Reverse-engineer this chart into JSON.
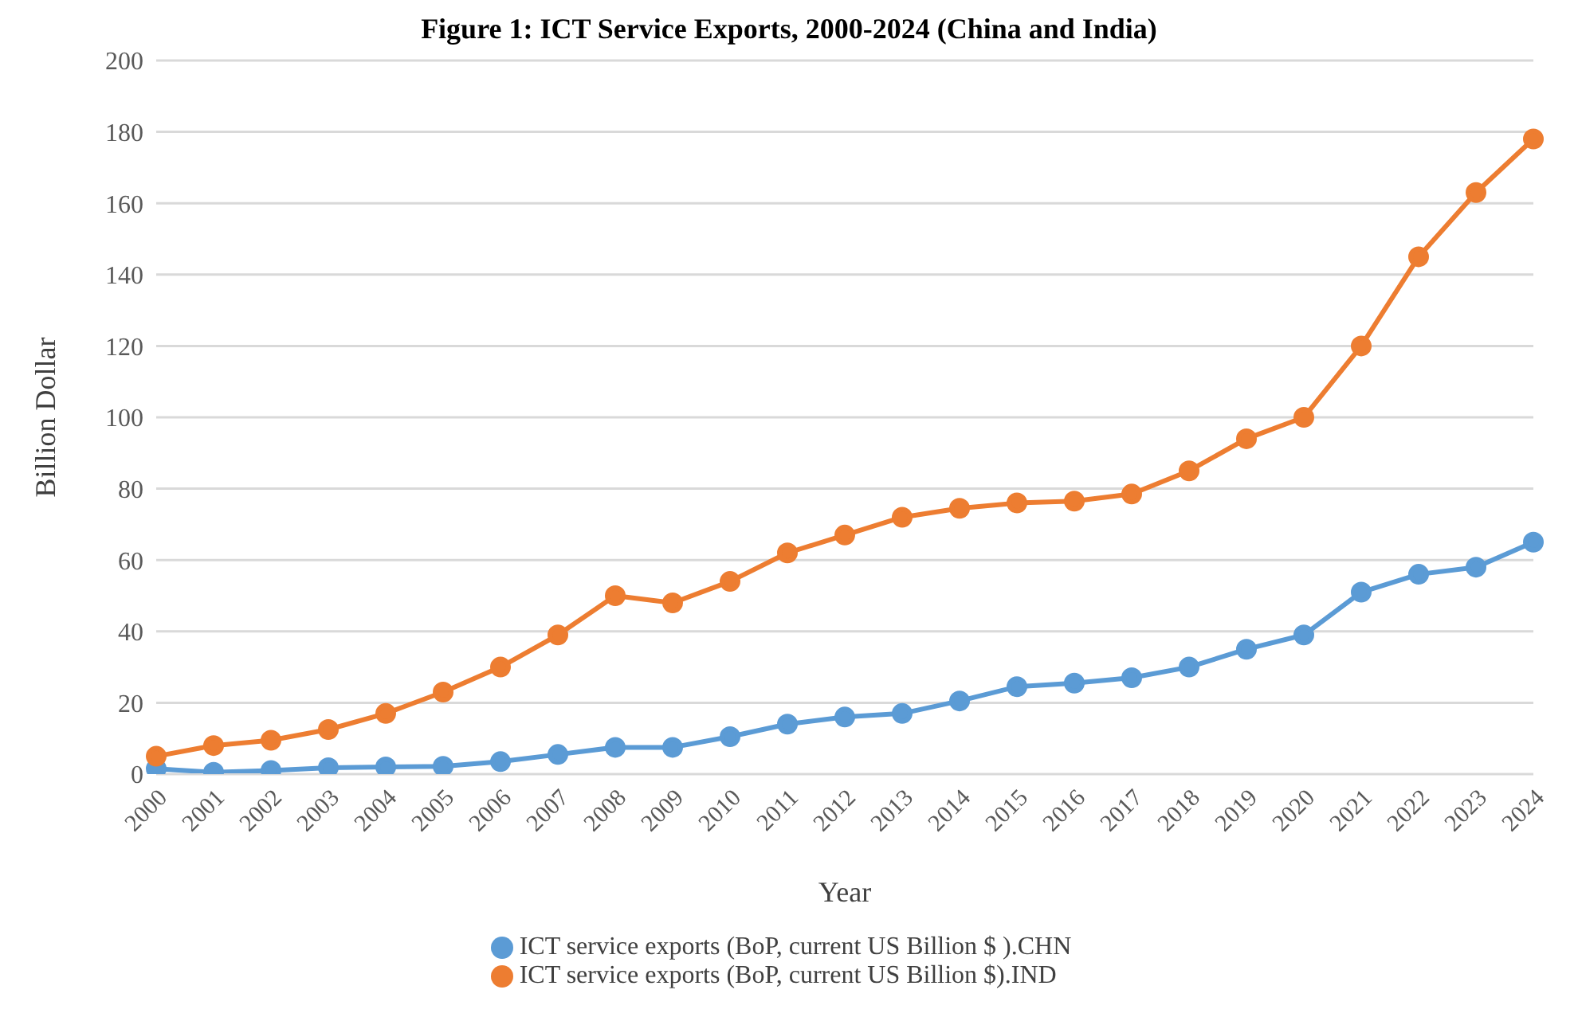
{
  "chart_data": {
    "type": "line",
    "title": "Figure 1: ICT Service Exports, 2000-2024 (China and India)",
    "xlabel": "Year",
    "ylabel": "Billion Dollar",
    "categories": [
      "2000",
      "2001",
      "2002",
      "2003",
      "2004",
      "2005",
      "2006",
      "2007",
      "2008",
      "2009",
      "2010",
      "2011",
      "2012",
      "2013",
      "2014",
      "2015",
      "2016",
      "2017",
      "2018",
      "2019",
      "2020",
      "2021",
      "2022",
      "2023",
      "2024"
    ],
    "series": [
      {
        "name": "ICT service exports (BoP, current US Billion $ ).CHN",
        "color": "#5b9bd5",
        "values": [
          1.5,
          0.5,
          1,
          1.8,
          2,
          2.2,
          3.5,
          5.5,
          7.5,
          7.5,
          10.5,
          14,
          16,
          17,
          20.5,
          24.5,
          25.5,
          27,
          30,
          35,
          39,
          51,
          56,
          58,
          65
        ]
      },
      {
        "name": "ICT service exports (BoP, current US Billion $).IND",
        "color": "#ed7d31",
        "values": [
          5,
          8,
          9.5,
          12.5,
          17,
          23,
          30,
          39,
          50,
          48,
          54,
          62,
          67,
          72,
          74.5,
          76,
          76.5,
          78.5,
          85,
          94,
          100,
          120,
          145,
          163,
          178
        ]
      }
    ],
    "ylim": [
      0,
      200
    ],
    "yticks": [
      0,
      20,
      40,
      60,
      80,
      100,
      120,
      140,
      160,
      180,
      200
    ],
    "grid": "y",
    "legend": "bottom",
    "marker": "circle",
    "line_style": "solid"
  }
}
